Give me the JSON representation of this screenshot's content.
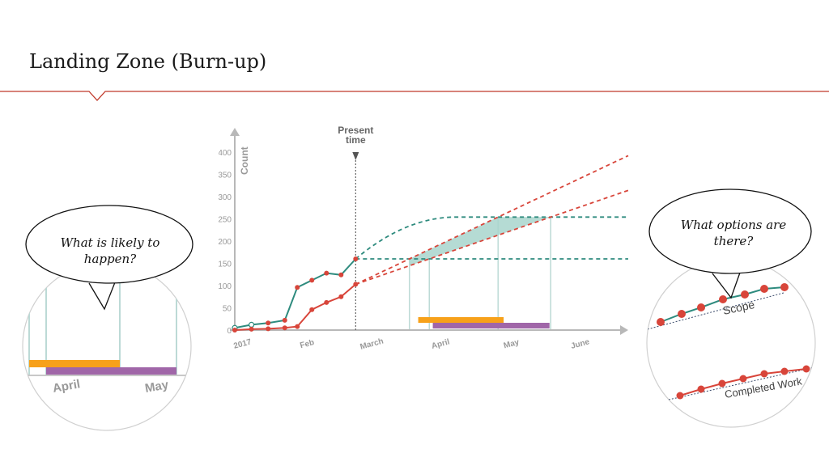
{
  "slide": {
    "title": "Landing Zone (Burn-up)"
  },
  "colors": {
    "accent_rule": "#c0392b",
    "scope": "#2e8b7e",
    "completed": "#d8453a",
    "forecast_band": "#a8d5cc",
    "orange_bar": "#f7a11a",
    "purple_bar": "#a066a8",
    "axis": "#b8b8b8",
    "grid_vline": "#bcdad6",
    "text_gray": "#999999"
  },
  "bubbles": {
    "left": "What is likely to happen?",
    "right": "What options are there?"
  },
  "chart_data": {
    "type": "line",
    "ylabel": "Count",
    "ylim": [
      0,
      400
    ],
    "yticks": [
      0,
      50,
      100,
      150,
      200,
      250,
      300,
      350,
      400
    ],
    "x_tick_labels": [
      "2017",
      "Feb",
      "March",
      "April",
      "May",
      "June"
    ],
    "present_label": "Present time",
    "series": [
      {
        "key": "scope",
        "x": [
          "2017-01-01",
          "2017-01-09",
          "2017-01-17",
          "2017-01-25",
          "2017-01-31",
          "2017-02-07",
          "2017-02-14",
          "2017-02-21",
          "2017-02-28"
        ],
        "values": [
          5,
          12,
          16,
          22,
          96,
          112,
          128,
          124,
          160
        ]
      },
      {
        "key": "completed",
        "x": [
          "2017-01-01",
          "2017-01-09",
          "2017-01-17",
          "2017-01-25",
          "2017-01-31",
          "2017-02-07",
          "2017-02-14",
          "2017-02-21",
          "2017-02-28"
        ],
        "values": [
          0,
          2,
          3,
          5,
          8,
          46,
          62,
          75,
          103
        ]
      }
    ],
    "scope_forecast": {
      "low": 160,
      "high": 254
    },
    "completed_forecast": {
      "start": [
        103
      ],
      "low_end": 314,
      "high_end": 392
    },
    "bars": [
      {
        "color": "orange",
        "start": "2017-03-30",
        "end": "2017-05-10"
      },
      {
        "color": "purple",
        "start": "2017-04-06",
        "end": "2017-05-19"
      },
      {
        "color": "purple",
        "start": "2017-05-10",
        "end": "2017-06-01"
      }
    ]
  },
  "zoom_left": {
    "labels": [
      "April",
      "May"
    ]
  },
  "zoom_right": {
    "labels": [
      "Scope",
      "Completed Work"
    ]
  }
}
